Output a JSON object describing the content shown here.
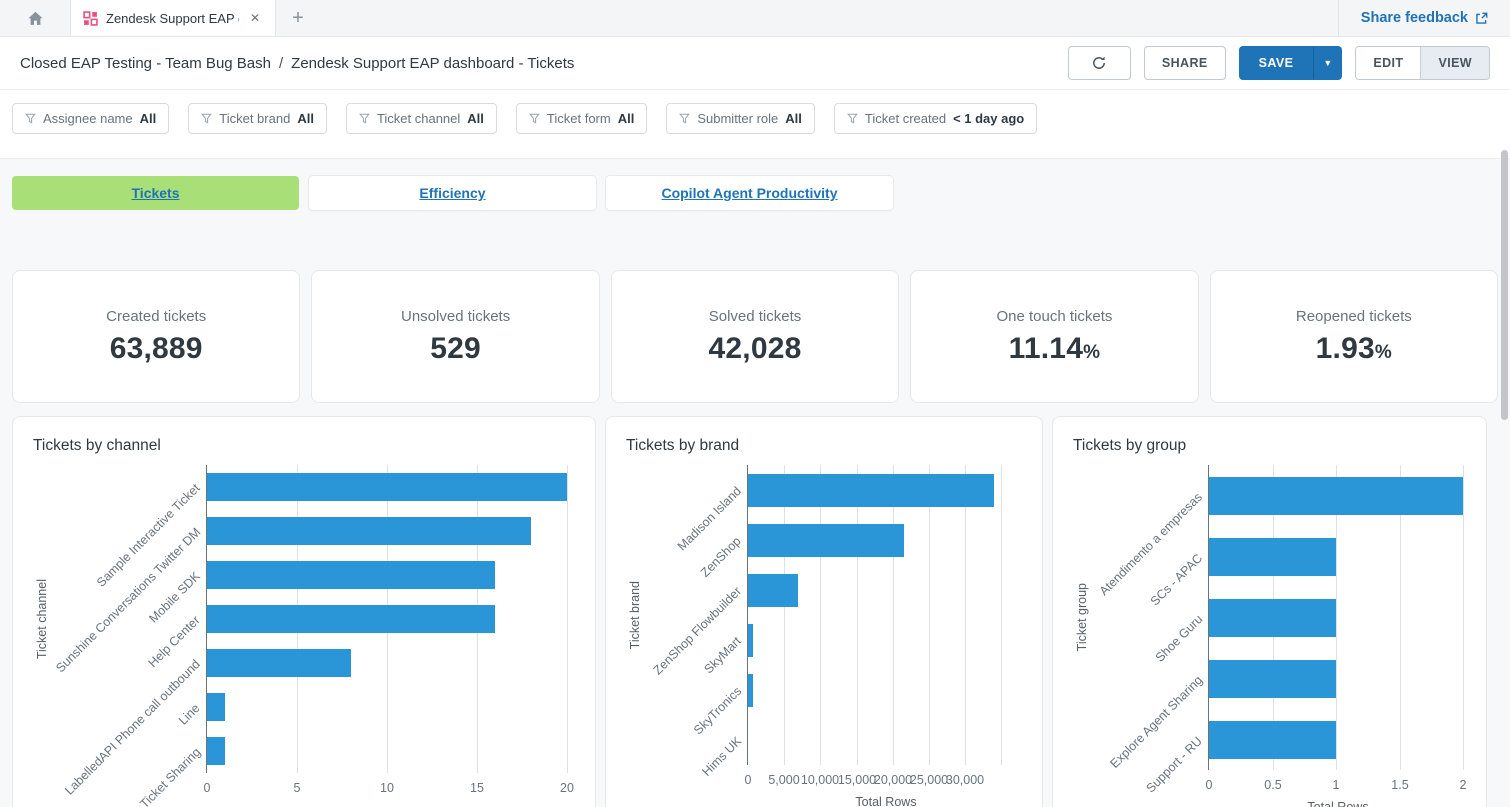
{
  "tab_bar": {
    "tab_title": "Zendesk Support EAP da...",
    "share_feedback": "Share feedback"
  },
  "header": {
    "breadcrumb_parent": "Closed EAP Testing - Team Bug Bash",
    "breadcrumb_separator": "/",
    "breadcrumb_current": "Zendesk Support EAP dashboard - Tickets",
    "share_label": "SHARE",
    "save_label": "SAVE",
    "edit_label": "EDIT",
    "view_label": "VIEW"
  },
  "filters": [
    {
      "label": "Assignee name",
      "value": "All"
    },
    {
      "label": "Ticket brand",
      "value": "All"
    },
    {
      "label": "Ticket channel",
      "value": "All"
    },
    {
      "label": "Ticket form",
      "value": "All"
    },
    {
      "label": "Submitter role",
      "value": "All"
    },
    {
      "label": "Ticket created",
      "value": "< 1 day ago"
    }
  ],
  "dashboard_tabs": [
    {
      "label": "Tickets",
      "active": true
    },
    {
      "label": "Efficiency",
      "active": false
    },
    {
      "label": "Copilot Agent Productivity",
      "active": false
    }
  ],
  "kpis": [
    {
      "label": "Created tickets",
      "value": "63,889",
      "suffix": ""
    },
    {
      "label": "Unsolved tickets",
      "value": "529",
      "suffix": ""
    },
    {
      "label": "Solved tickets",
      "value": "42,028",
      "suffix": ""
    },
    {
      "label": "One touch tickets",
      "value": "11.14",
      "suffix": "%"
    },
    {
      "label": "Reopened tickets",
      "value": "1.93",
      "suffix": "%"
    }
  ],
  "colors": {
    "accent_blue": "#1f73b7",
    "bar_blue": "#2a96d8",
    "active_tab_green": "#a8df76",
    "tab_icon_pink": "#e8517e"
  },
  "chart_data": [
    {
      "type": "bar",
      "orientation": "horizontal",
      "title": "Tickets by channel",
      "ylabel": "Ticket channel",
      "xlabel": "",
      "categories": [
        "Sample Interactive Ticket",
        "Sunshine Conversations Twitter DM",
        "Mobile SDK",
        "Help Center",
        "LabelledAPI Phone call outbound",
        "Line",
        "Ticket Sharing"
      ],
      "values": [
        20,
        18,
        16,
        16,
        8,
        1,
        1
      ],
      "xticks": [
        0,
        5,
        10,
        15,
        20
      ],
      "xtick_labels": [
        "0",
        "5",
        "10",
        "15",
        "20"
      ],
      "grid_extra": [],
      "xlim": [
        0,
        20.5
      ],
      "legend": false
    },
    {
      "type": "bar",
      "orientation": "horizontal",
      "title": "Tickets by brand",
      "ylabel": "Ticket brand",
      "xlabel": "Total Rows",
      "categories": [
        "Madison Island",
        "ZenShop",
        "ZenShop Flowbuilder",
        "SkyMart",
        "SkyTronics",
        "Hims UK"
      ],
      "values": [
        34000,
        21600,
        6900,
        700,
        700,
        0
      ],
      "xticks": [
        0,
        5000,
        10000,
        15000,
        20000,
        25000,
        30000
      ],
      "xtick_labels": [
        "0",
        "5,000",
        "10,000",
        "15,000",
        "20,000",
        "25,000",
        "30,000"
      ],
      "grid_extra": [
        35000
      ],
      "xlim": [
        0,
        38000
      ],
      "legend": false
    },
    {
      "type": "bar",
      "orientation": "horizontal",
      "title": "Tickets by group",
      "ylabel": "Ticket group",
      "xlabel": "Total Rows",
      "categories": [
        "Atendimento a empresas",
        "SCs - APAC",
        "Shoe Guru",
        "Explore Agent Sharing",
        "Support - RU"
      ],
      "values": [
        2,
        1,
        1,
        1,
        1
      ],
      "xticks": [
        0,
        0.5,
        1,
        1.5,
        2
      ],
      "xtick_labels": [
        "0",
        "0.5",
        "1",
        "1.5",
        "2"
      ],
      "grid_extra": [],
      "xlim": [
        0,
        2.03
      ],
      "legend": false
    }
  ]
}
